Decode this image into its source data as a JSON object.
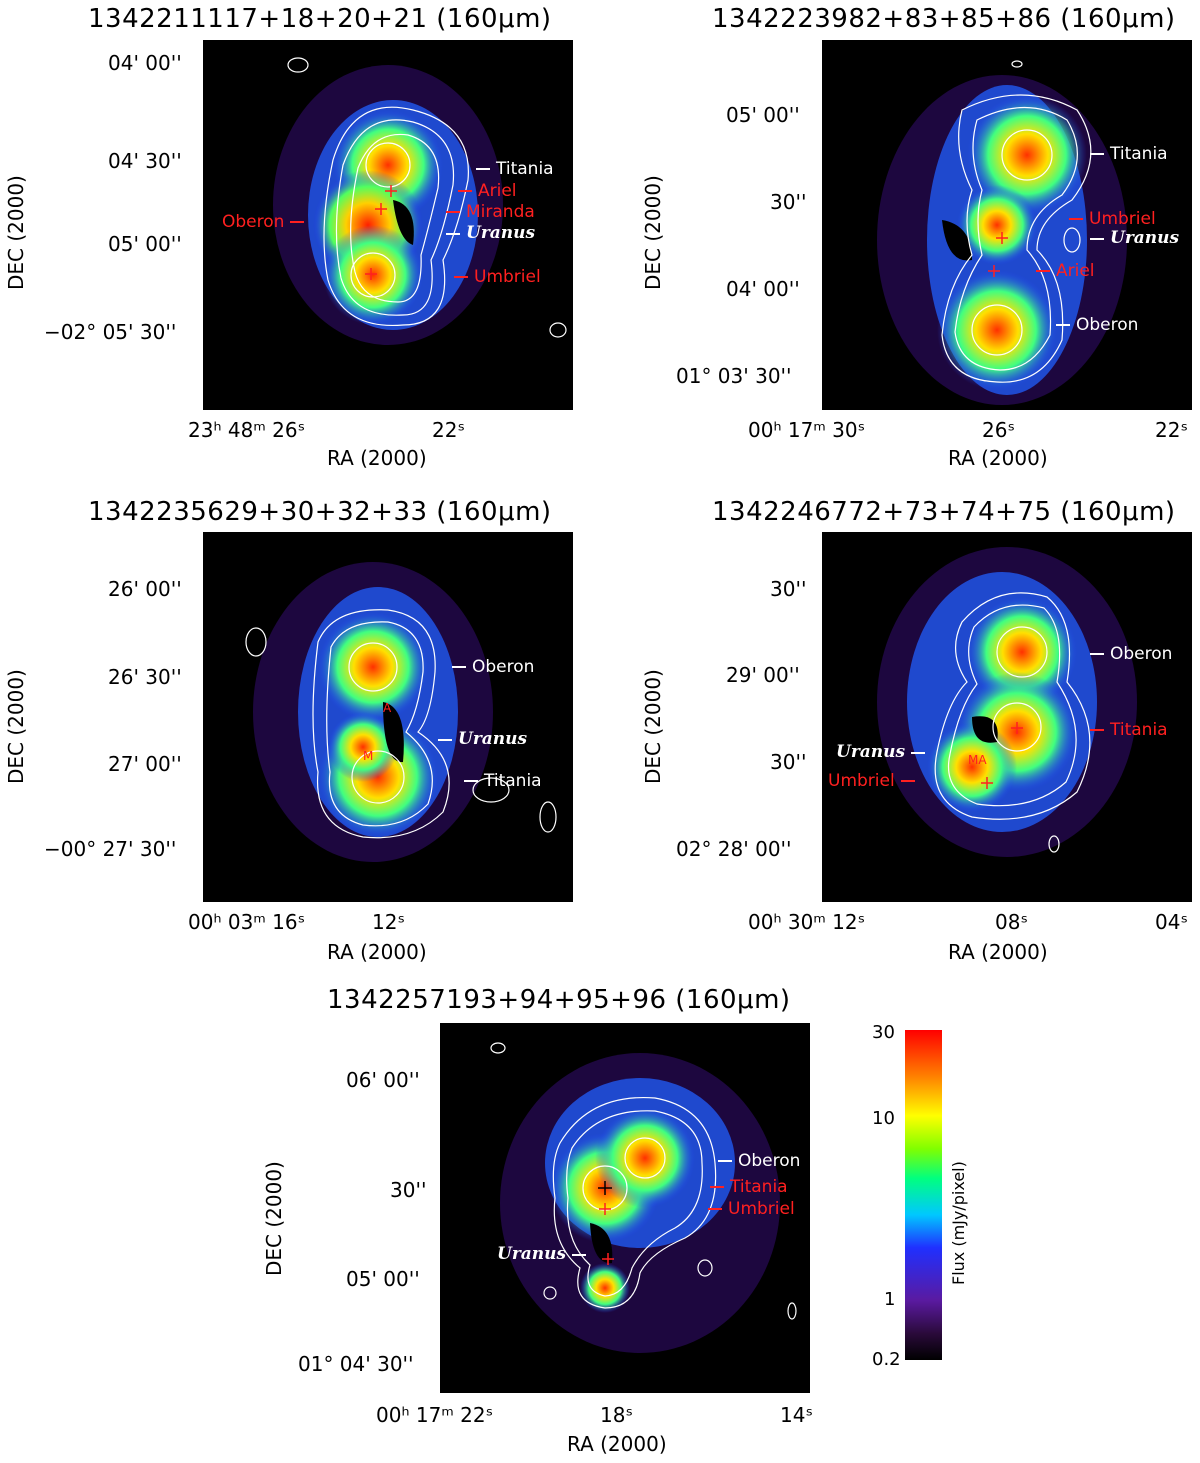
{
  "panels": [
    {
      "title": "1342211117+18+20+21 (160μm)",
      "yticks": [
        "04' 00''",
        "04' 30''",
        "05' 00''",
        "−02° 05' 30''"
      ],
      "xticks": [
        "23ʰ 48ᵐ 26ˢ",
        "22ˢ"
      ],
      "ylabel": "DEC (2000)",
      "xlabel": "RA (2000)",
      "labels": [
        {
          "text": "Titania",
          "color": "#ffffff"
        },
        {
          "text": "Ariel",
          "color": "#ff2020"
        },
        {
          "text": "Miranda",
          "color": "#ff2020"
        },
        {
          "text": "Oberon",
          "color": "#ff2020"
        },
        {
          "text": "Uranus",
          "color": "#ffffff"
        },
        {
          "text": "Umbriel",
          "color": "#ff2020"
        }
      ]
    },
    {
      "title": "1342223982+83+85+86 (160μm)",
      "yticks": [
        "05' 00''",
        "30''",
        "04' 00''",
        "01° 03' 30''"
      ],
      "xticks": [
        "00ʰ 17ᵐ 30ˢ",
        "26ˢ",
        "22ˢ"
      ],
      "ylabel": "DEC (2000)",
      "xlabel": "RA (2000)",
      "labels": [
        {
          "text": "Titania",
          "color": "#ffffff"
        },
        {
          "text": "Umbriel",
          "color": "#ff2020"
        },
        {
          "text": "Uranus",
          "color": "#ffffff"
        },
        {
          "text": "Ariel",
          "color": "#ff2020"
        },
        {
          "text": "Oberon",
          "color": "#ffffff"
        }
      ]
    },
    {
      "title": "1342235629+30+32+33 (160μm)",
      "yticks": [
        "26' 00''",
        "26' 30''",
        "27' 00''",
        "−00° 27' 30''"
      ],
      "xticks": [
        "00ʰ 03ᵐ 16ˢ",
        "12ˢ"
      ],
      "ylabel": "DEC (2000)",
      "xlabel": "RA (2000)",
      "labels": [
        {
          "text": "Oberon",
          "color": "#ffffff"
        },
        {
          "text": "Uranus",
          "color": "#ffffff"
        },
        {
          "text": "Titania",
          "color": "#ffffff"
        }
      ]
    },
    {
      "title": "1342246772+73+74+75 (160μm)",
      "yticks": [
        "30''",
        "29' 00''",
        "30''",
        "02° 28' 00''"
      ],
      "xticks": [
        "00ʰ 30ᵐ 12ˢ",
        "08ˢ",
        "04ˢ"
      ],
      "ylabel": "DEC (2000)",
      "xlabel": "RA (2000)",
      "labels": [
        {
          "text": "Oberon",
          "color": "#ffffff"
        },
        {
          "text": "Titania",
          "color": "#ff2020"
        },
        {
          "text": "Uranus",
          "color": "#ffffff"
        },
        {
          "text": "Umbriel",
          "color": "#ff2020"
        }
      ]
    },
    {
      "title": "1342257193+94+95+96 (160μm)",
      "yticks": [
        "06' 00''",
        "30''",
        "05' 00''",
        "01° 04' 30''"
      ],
      "xticks": [
        "00ʰ 17ᵐ 22ˢ",
        "18ˢ",
        "14ˢ"
      ],
      "ylabel": "DEC (2000)",
      "xlabel": "RA (2000)",
      "labels": [
        {
          "text": "Oberon",
          "color": "#ffffff"
        },
        {
          "text": "Titania",
          "color": "#ff2020"
        },
        {
          "text": "Umbriel",
          "color": "#ff2020"
        },
        {
          "text": "Uranus",
          "color": "#ffffff"
        }
      ]
    }
  ],
  "colorbar": {
    "title": "Flux (mJy/pixel)",
    "ticks": [
      "30",
      "10",
      "1",
      "0.2"
    ]
  }
}
